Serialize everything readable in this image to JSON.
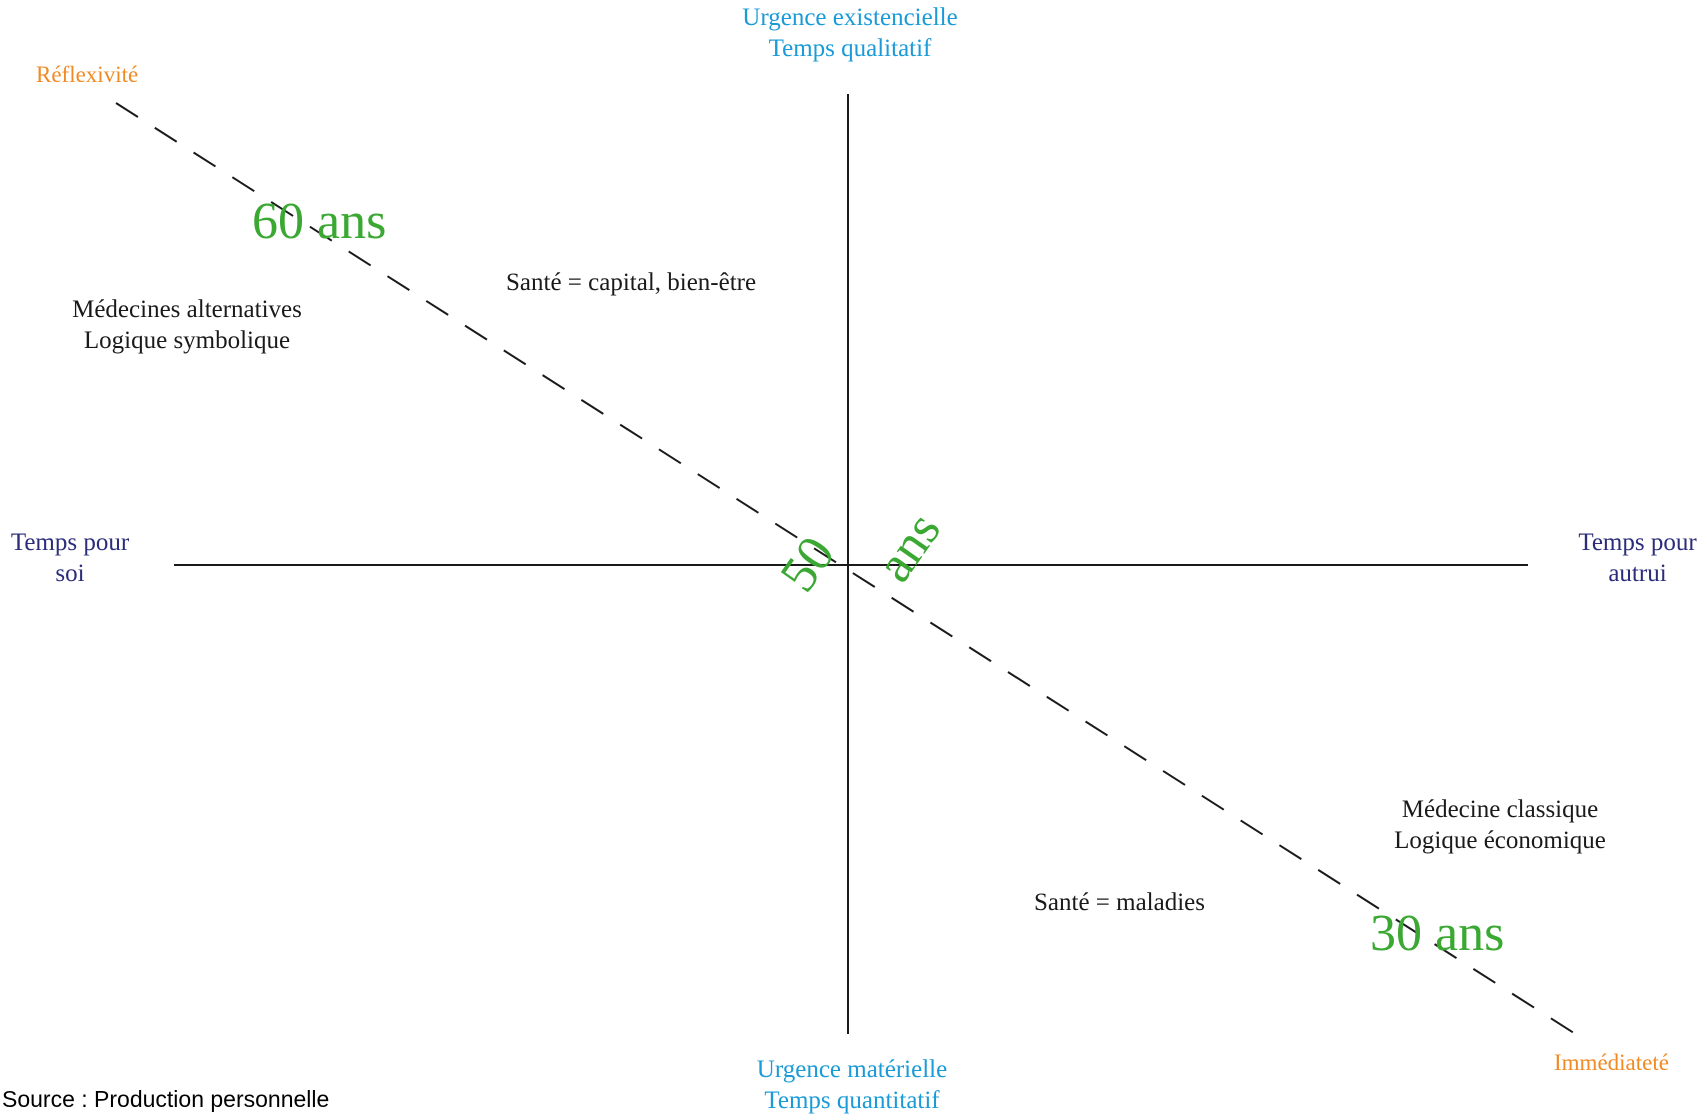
{
  "axes": {
    "top": [
      "Urgence existencielle",
      "Temps qualitatif"
    ],
    "bottom": [
      "Urgence matérielle",
      "Temps quantitatif"
    ],
    "left": [
      "Temps pour",
      "soi"
    ],
    "right": [
      "Temps pour",
      "autrui"
    ]
  },
  "diagonal": {
    "start_label": "Réflexivité",
    "end_label": "Immédiateté"
  },
  "ages": {
    "age_60": "60 ans",
    "age_50_number": "50",
    "age_50_unit": "ans",
    "age_30": "30 ans"
  },
  "quadrants": {
    "top_left": [
      "Médecines alternatives",
      "Logique symbolique"
    ],
    "top_center": "Santé = capital, bien-être",
    "bottom_right": [
      "Médecine classique",
      "Logique économique"
    ],
    "bottom_center": "Santé = maladies"
  },
  "source": "Source : Production personnelle",
  "colors": {
    "vertical_axis_labels": "#1a9bd7",
    "horizontal_axis_labels": "#2b2d7a",
    "diagonal_labels": "#f08a24",
    "age_labels": "#3aa832",
    "lines": "#1a1a1a"
  }
}
